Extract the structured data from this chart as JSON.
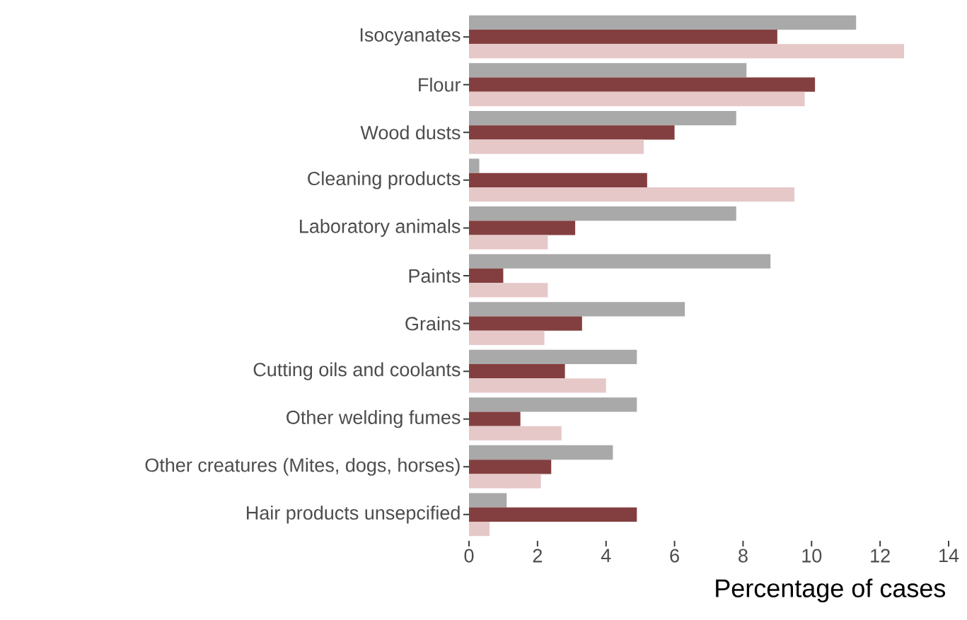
{
  "chart_data": {
    "type": "bar",
    "orientation": "horizontal",
    "xlabel": "Percentage of cases",
    "categories": [
      "Isocyanates",
      "Flour",
      "Wood dusts",
      "Cleaning products",
      "Laboratory animals",
      "Paints",
      "Grains",
      "Cutting oils and coolants",
      "Other welding fumes",
      "Other creatures (Mites, dogs, horses)",
      "Hair products unsepcified"
    ],
    "series": [
      {
        "color": "#a9a9a9",
        "values": [
          11.3,
          8.1,
          7.8,
          0.3,
          7.8,
          8.8,
          6.3,
          4.9,
          4.9,
          4.2,
          1.1
        ]
      },
      {
        "color": "#833f3f",
        "values": [
          9.0,
          10.1,
          6.0,
          5.2,
          3.1,
          1.0,
          3.3,
          2.8,
          1.5,
          2.4,
          4.9
        ]
      },
      {
        "color": "#e6c8c9",
        "values": [
          12.7,
          9.8,
          5.1,
          9.5,
          2.3,
          2.3,
          2.2,
          4.0,
          2.7,
          2.1,
          0.6
        ]
      }
    ],
    "xlim": [
      0,
      14
    ],
    "xticks": [
      0,
      2,
      4,
      6,
      8,
      10,
      12,
      14
    ]
  }
}
